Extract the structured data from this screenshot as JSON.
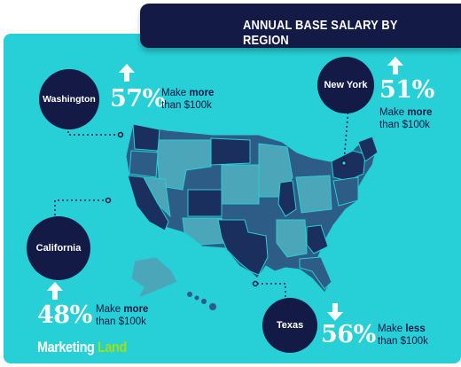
{
  "title": "ANNUAL BASE SALARY BY REGION",
  "regions": {
    "washington": {
      "name": "Washington",
      "percent": "57%",
      "direction": "up",
      "note_prefix": "Make ",
      "note_emph": "more",
      "note_suffix": "than $100k"
    },
    "new_york": {
      "name": "New York",
      "percent": "51%",
      "direction": "up",
      "note_prefix": "Make ",
      "note_emph": "more",
      "note_suffix": "than $100k"
    },
    "california": {
      "name": "California",
      "percent": "48%",
      "direction": "up",
      "note_prefix": "Make ",
      "note_emph": "more",
      "note_suffix": "than $100k"
    },
    "texas": {
      "name": "Texas",
      "percent": "56%",
      "direction": "down",
      "note_prefix": "Make ",
      "note_emph": "less",
      "note_suffix": "than $100k"
    }
  },
  "logo": {
    "part1": "Marketing",
    "part2": "Land"
  },
  "colors": {
    "background": "#27cfd6",
    "navy": "#131a45",
    "state_dark": "#1b2f5e",
    "state_mid": "#2d5c86",
    "state_light": "#4aa6b8",
    "logo_accent": "#9be20f"
  }
}
